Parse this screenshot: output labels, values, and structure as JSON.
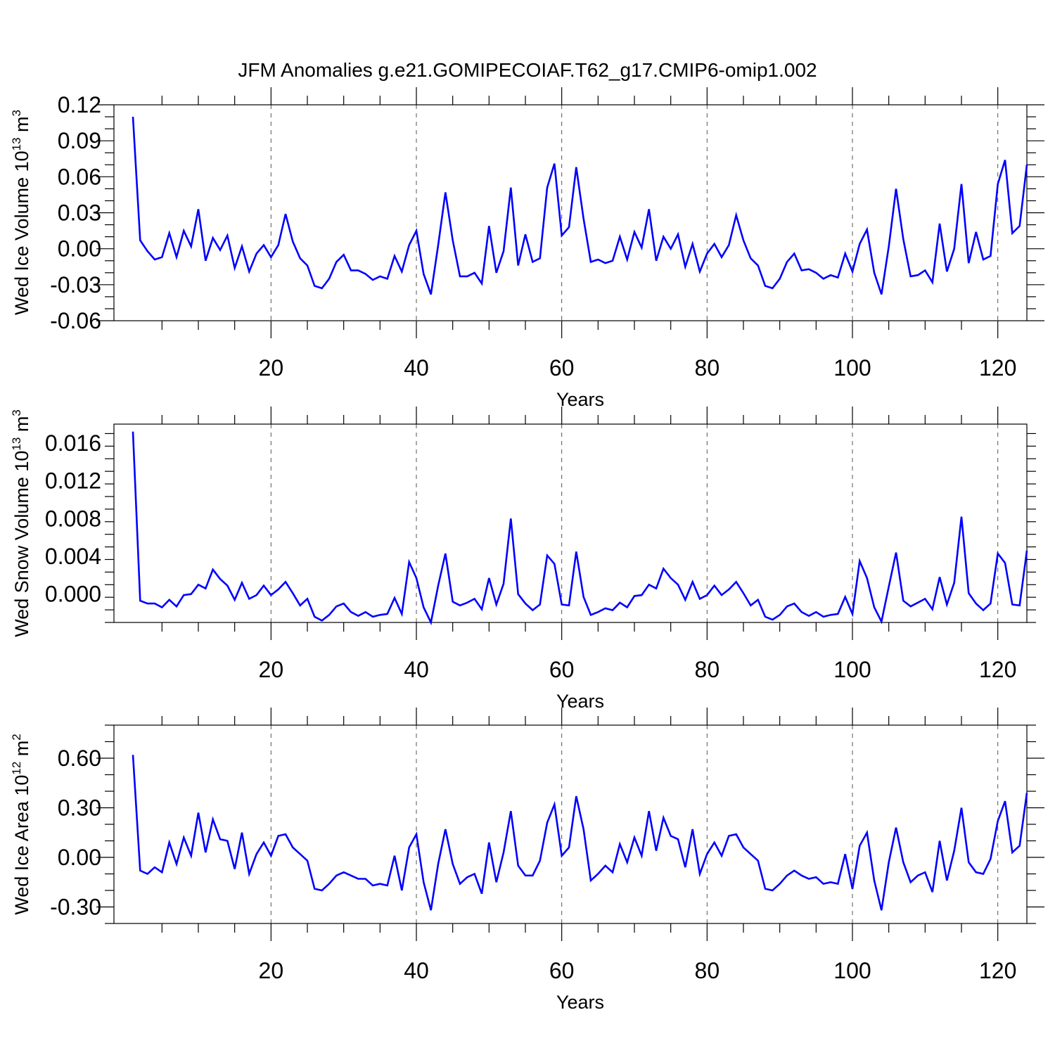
{
  "title": "JFM Anomalies g.e21.GOMIPECOIAF.T62_g17.CMIP6-omip1.002",
  "line_color": "#0000ff",
  "chart_data": [
    {
      "type": "line",
      "ylabel": "Wed Ice Volume 10",
      "ylabel_sup": "13",
      "ylabel_unit": " m",
      "ylabel_unit_sup": "3",
      "xlabel": "Years",
      "xlim": [
        1,
        124
      ],
      "ylim": [
        -0.06,
        0.12
      ],
      "yticks": [
        "0.12",
        "0.09",
        "0.06",
        "0.03",
        "0.00",
        "-0.03",
        "-0.06"
      ],
      "ytick_values": [
        0.12,
        0.09,
        0.06,
        0.03,
        0.0,
        -0.03,
        -0.06
      ],
      "xticks": [
        "20",
        "40",
        "60",
        "80",
        "100",
        "120"
      ],
      "xtick_values": [
        20,
        40,
        60,
        80,
        100,
        120
      ],
      "grid": "vertical dashed",
      "series": [
        {
          "values": [
            0.11,
            0.007,
            -0.002,
            -0.009,
            -0.007,
            0.013,
            -0.007,
            0.015,
            0.002,
            0.033,
            -0.01,
            0.009,
            -0.001,
            0.011,
            -0.016,
            0.002,
            -0.019,
            -0.004,
            0.003,
            -0.007,
            0.003,
            0.029,
            0.006,
            -0.008,
            -0.014,
            -0.031,
            -0.033,
            -0.025,
            -0.011,
            -0.005,
            -0.018,
            -0.018,
            -0.021,
            -0.026,
            -0.023,
            -0.025,
            -0.006,
            -0.019,
            0.003,
            0.015,
            -0.021,
            -0.038,
            0.003,
            0.047,
            0.007,
            -0.023,
            -0.023,
            -0.02,
            -0.029,
            0.019,
            -0.02,
            -0.002,
            0.051,
            -0.014,
            0.012,
            -0.011,
            -0.008,
            0.051,
            0.071,
            0.011,
            0.018,
            0.068,
            0.025,
            -0.011,
            -0.009,
            -0.012,
            -0.01,
            0.01,
            -0.009,
            0.014,
            0.001,
            0.033,
            -0.01,
            0.01,
            0.0,
            0.012,
            -0.015,
            0.004,
            -0.019,
            -0.004,
            0.004,
            -0.007,
            0.003,
            0.028,
            0.007,
            -0.008,
            -0.014,
            -0.031,
            -0.033,
            -0.025,
            -0.011,
            -0.004,
            -0.018,
            -0.017,
            -0.02,
            -0.025,
            -0.022,
            -0.024,
            -0.004,
            -0.019,
            0.004,
            0.016,
            -0.02,
            -0.038,
            0.002,
            0.05,
            0.008,
            -0.023,
            -0.022,
            -0.018,
            -0.028,
            0.021,
            -0.019,
            0.0,
            0.054,
            -0.012,
            0.014,
            -0.009,
            -0.006,
            0.054,
            0.074,
            0.013,
            0.019,
            0.07
          ]
        }
      ]
    },
    {
      "type": "line",
      "ylabel": "Wed Snow Volume 10",
      "ylabel_sup": "13",
      "ylabel_unit": " m",
      "ylabel_unit_sup": "3",
      "xlabel": "Years",
      "xlim": [
        1,
        124
      ],
      "ylim": [
        -0.003,
        0.018
      ],
      "yticks": [
        "0.016",
        "0.012",
        "0.008",
        "0.004",
        "0.000"
      ],
      "ytick_values": [
        0.016,
        0.012,
        0.008,
        0.004,
        0.0
      ],
      "xticks": [
        "20",
        "40",
        "60",
        "80",
        "100",
        "120"
      ],
      "xtick_values": [
        20,
        40,
        60,
        80,
        100,
        120
      ],
      "grid": "vertical dashed",
      "series": [
        {
          "values": [
            0.0172,
            -0.0007,
            -0.001,
            -0.001,
            -0.0014,
            -0.0006,
            -0.0013,
            -0.0001,
            0.0,
            0.001,
            0.0006,
            0.0026,
            0.0016,
            0.0009,
            -0.0006,
            0.0012,
            -0.0005,
            -0.0001,
            0.0009,
            -0.0001,
            0.0005,
            0.0013,
            0.0001,
            -0.0012,
            -0.0005,
            -0.0024,
            -0.0028,
            -0.0022,
            -0.0013,
            -0.001,
            -0.0019,
            -0.0023,
            -0.0019,
            -0.0024,
            -0.0022,
            -0.0021,
            -0.0004,
            -0.0021,
            0.0034,
            0.0017,
            -0.0014,
            -0.003,
            0.0009,
            0.0043,
            -0.0008,
            -0.0012,
            -0.0009,
            -0.0005,
            -0.0016,
            0.0017,
            -0.0011,
            0.0011,
            0.008,
            0.0,
            -0.001,
            -0.0017,
            -0.0011,
            0.0041,
            0.0032,
            -0.0011,
            -0.0012,
            0.0045,
            -0.0003,
            -0.0022,
            -0.0019,
            -0.0015,
            -0.0017,
            -0.0009,
            -0.0014,
            -0.0002,
            -0.0001,
            0.001,
            0.0006,
            0.0027,
            0.0017,
            0.001,
            -0.0006,
            0.0013,
            -0.0005,
            -0.0001,
            0.0009,
            -0.0001,
            0.0005,
            0.0013,
            0.0001,
            -0.0012,
            -0.0006,
            -0.0024,
            -0.0027,
            -0.0022,
            -0.0013,
            -0.001,
            -0.0019,
            -0.0023,
            -0.0019,
            -0.0024,
            -0.0022,
            -0.0021,
            -0.0003,
            -0.0021,
            0.0035,
            0.0017,
            -0.0014,
            -0.0029,
            0.0008,
            0.0044,
            -0.0007,
            -0.0013,
            -0.0009,
            -0.0005,
            -0.0016,
            0.0018,
            -0.0011,
            0.0012,
            0.0082,
            0.0001,
            -0.001,
            -0.0017,
            -0.001,
            0.0043,
            0.0033,
            -0.0011,
            -0.0012,
            0.0046
          ]
        }
      ]
    },
    {
      "type": "line",
      "ylabel": "Wed Ice Area 10",
      "ylabel_sup": "12",
      "ylabel_unit": " m",
      "ylabel_unit_sup": "2",
      "xlabel": "Years",
      "xlim": [
        1,
        124
      ],
      "ylim": [
        -0.4,
        0.8
      ],
      "yticks": [
        "0.60",
        "0.30",
        "0.00",
        "-0.30"
      ],
      "ytick_values": [
        0.6,
        0.3,
        0.0,
        -0.3
      ],
      "xticks": [
        "20",
        "40",
        "60",
        "80",
        "100",
        "120"
      ],
      "xtick_values": [
        20,
        40,
        60,
        80,
        100,
        120
      ],
      "grid": "vertical dashed",
      "series": [
        {
          "values": [
            0.62,
            -0.08,
            -0.1,
            -0.06,
            -0.09,
            0.09,
            -0.04,
            0.12,
            0.01,
            0.27,
            0.03,
            0.23,
            0.11,
            0.1,
            -0.07,
            0.15,
            -0.1,
            0.02,
            0.09,
            0.01,
            0.13,
            0.14,
            0.06,
            0.02,
            -0.02,
            -0.19,
            -0.2,
            -0.16,
            -0.11,
            -0.09,
            -0.11,
            -0.13,
            -0.13,
            -0.17,
            -0.16,
            -0.17,
            0.01,
            -0.2,
            0.06,
            0.14,
            -0.15,
            -0.32,
            -0.04,
            0.17,
            -0.04,
            -0.16,
            -0.12,
            -0.1,
            -0.22,
            0.09,
            -0.15,
            0.03,
            0.28,
            -0.05,
            -0.11,
            -0.11,
            -0.02,
            0.21,
            0.32,
            0.01,
            0.06,
            0.37,
            0.17,
            -0.14,
            -0.1,
            -0.05,
            -0.09,
            0.08,
            -0.03,
            0.12,
            0.01,
            0.28,
            0.04,
            0.24,
            0.13,
            0.11,
            -0.06,
            0.17,
            -0.1,
            0.02,
            0.09,
            0.01,
            0.13,
            0.14,
            0.06,
            0.02,
            -0.02,
            -0.19,
            -0.2,
            -0.16,
            -0.11,
            -0.08,
            -0.11,
            -0.13,
            -0.12,
            -0.16,
            -0.15,
            -0.16,
            0.02,
            -0.19,
            0.07,
            0.15,
            -0.14,
            -0.32,
            -0.03,
            0.18,
            -0.03,
            -0.15,
            -0.11,
            -0.09,
            -0.21,
            0.1,
            -0.14,
            0.04,
            0.3,
            -0.03,
            -0.09,
            -0.1,
            -0.01,
            0.22,
            0.34,
            0.03,
            0.07,
            0.39
          ]
        }
      ]
    }
  ]
}
